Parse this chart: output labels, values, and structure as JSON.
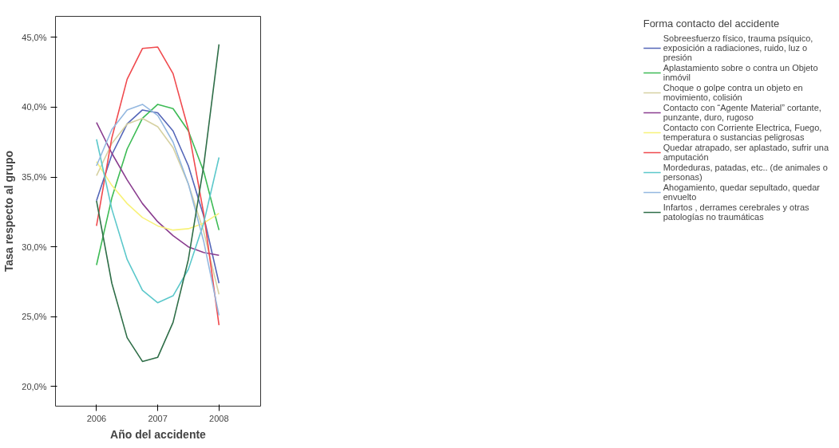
{
  "chart_data": {
    "type": "line",
    "xlabel": "Año del accidente",
    "ylabel": "Tasa respecto al grupo",
    "legend_title": "Forma contacto del accidente",
    "legend": "right",
    "grid": false,
    "marker": "none",
    "line_style": "solid",
    "x": [
      2006,
      2006.25,
      2006.5,
      2006.75,
      2007,
      2007.25,
      2007.5,
      2007.75,
      2008
    ],
    "xlim": [
      2005.33,
      2008.68
    ],
    "xticks": [
      2006,
      2007,
      2008
    ],
    "ylim": [
      18.6,
      46.5
    ],
    "yticks": [
      {
        "value": 20,
        "label": "20,0%"
      },
      {
        "value": 25,
        "label": "25,0%"
      },
      {
        "value": 30,
        "label": "30,0%"
      },
      {
        "value": 35,
        "label": "35,0%"
      },
      {
        "value": 40,
        "label": "40,0%"
      },
      {
        "value": 45,
        "label": "45,0%"
      }
    ],
    "series": [
      {
        "name": "Sobreesfuerzo físico, trauma psíquico, exposición a radiaciones, ruido, luz o presión",
        "color": "#5466b8",
        "values": [
          33.3,
          36.6,
          38.8,
          39.8,
          39.6,
          38.3,
          35.8,
          32.2,
          27.4
        ]
      },
      {
        "name": "Aplastamiento sobre o contra un Objeto inmóvil",
        "color": "#3dbb55",
        "values": [
          28.7,
          33.5,
          37.0,
          39.2,
          40.2,
          39.9,
          38.3,
          35.4,
          31.2
        ]
      },
      {
        "name": "Choque o golpe contra un objeto en movimiento, colisión",
        "color": "#d6d1a2",
        "values": [
          35.1,
          37.4,
          38.8,
          39.2,
          38.6,
          37.1,
          34.5,
          31.1,
          26.6
        ]
      },
      {
        "name": "Contacto con “Agente Material” cortante, punzante, duro, rugoso",
        "color": "#8a3d8f",
        "values": [
          38.9,
          36.7,
          34.8,
          33.1,
          31.8,
          30.8,
          30.0,
          29.6,
          29.4
        ]
      },
      {
        "name": "Contacto con Corriente Electrica, Fuego, temperatura o sustancias peligrosas",
        "color": "#f8f27a",
        "values": [
          36.1,
          34.4,
          33.1,
          32.1,
          31.5,
          31.2,
          31.3,
          31.7,
          32.4
        ]
      },
      {
        "name": "Quedar atrapado, ser aplastado, sufrir una amputación",
        "color": "#f04a4e",
        "values": [
          31.5,
          37.8,
          42.0,
          44.2,
          44.3,
          42.4,
          38.4,
          32.4,
          24.4
        ]
      },
      {
        "name": "Mordeduras, patadas, etc.. (de animales o personas)",
        "color": "#5cc8cb",
        "values": [
          37.7,
          32.7,
          29.1,
          26.9,
          26.0,
          26.5,
          28.4,
          31.7,
          36.4
        ]
      },
      {
        "name": "Ahogamiento, quedar sepultado, quedar envuelto",
        "color": "#94b8e0",
        "values": [
          35.8,
          38.4,
          39.8,
          40.2,
          39.4,
          37.5,
          34.5,
          30.4,
          25.1
        ]
      },
      {
        "name": "Infartos , derrames cerebrales y otras patologías no traumáticas",
        "color": "#2f6e48",
        "values": [
          33.3,
          27.4,
          23.5,
          21.8,
          22.1,
          24.6,
          29.1,
          35.8,
          44.5
        ]
      }
    ]
  }
}
